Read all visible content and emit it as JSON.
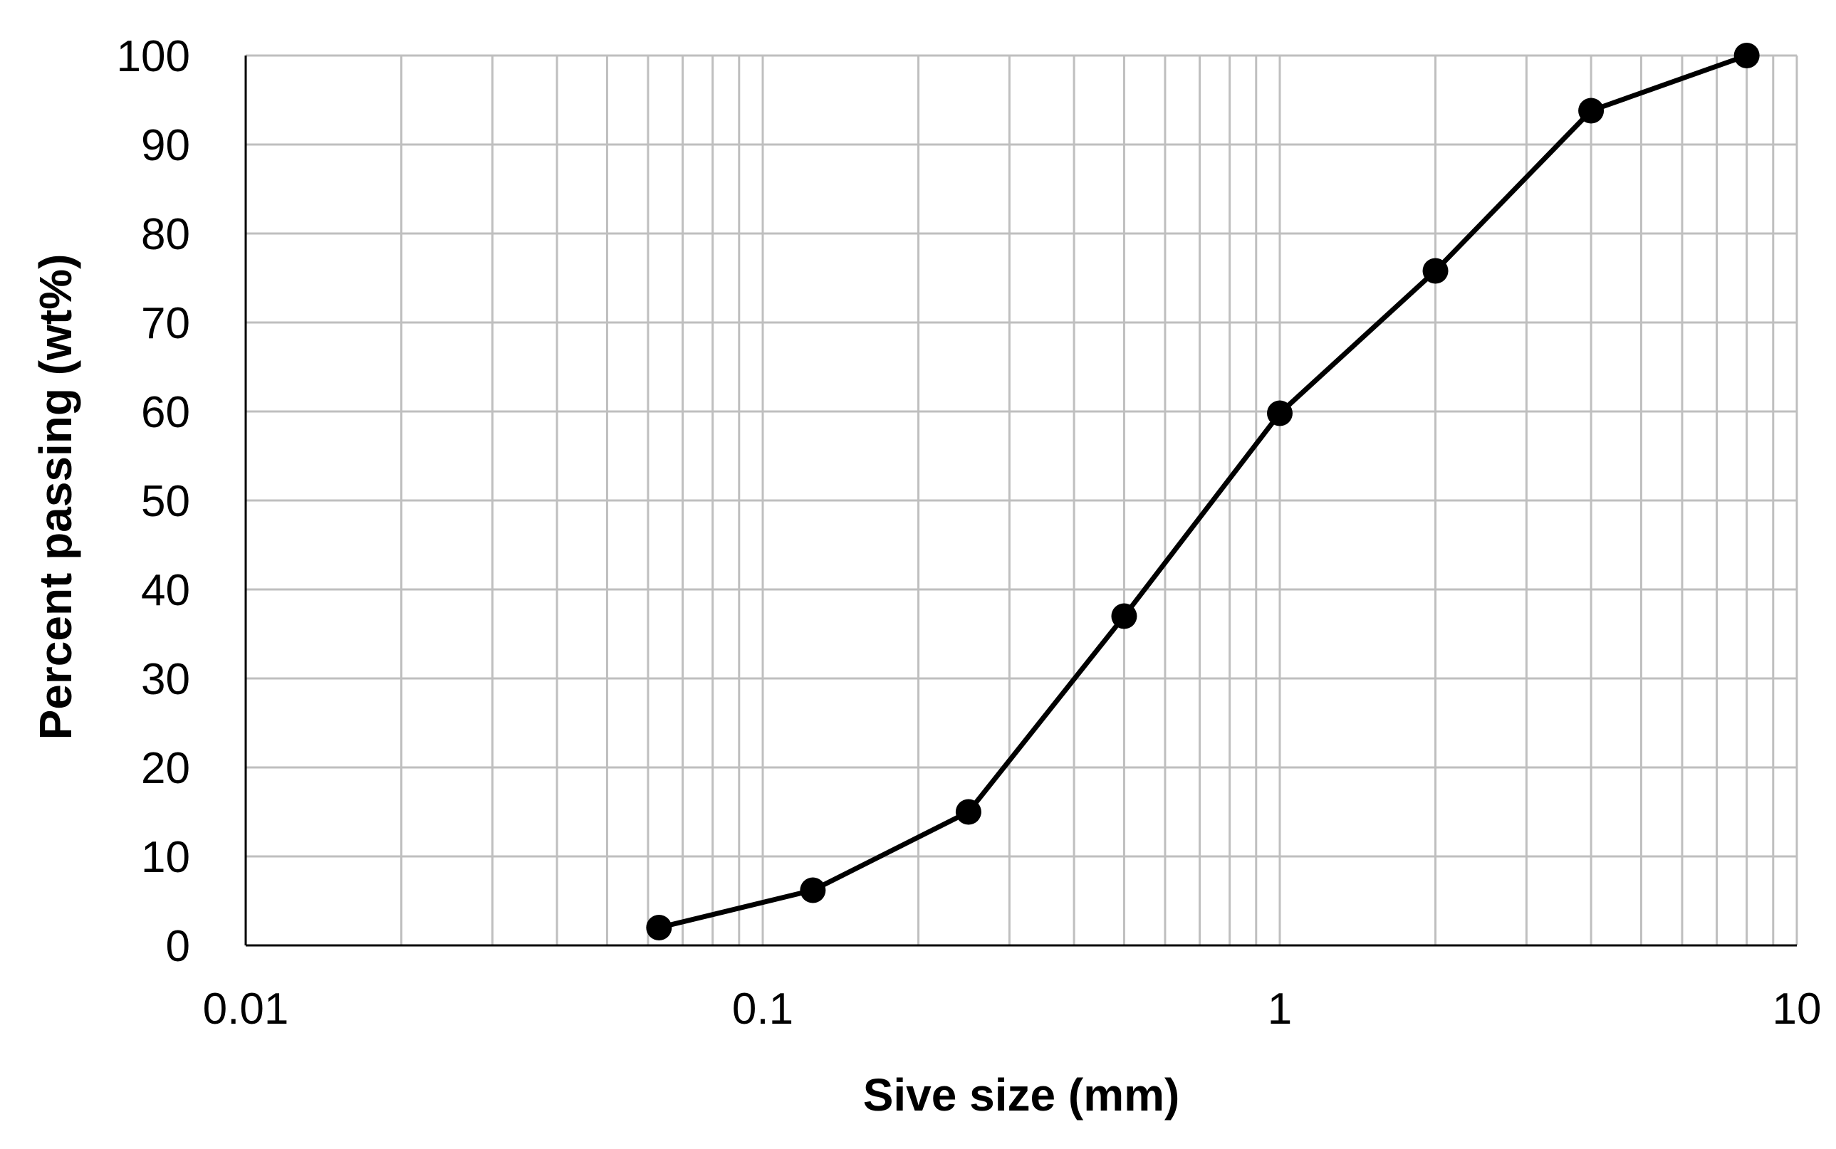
{
  "chart_data": {
    "type": "line",
    "title": "",
    "xlabel": "Sive size (mm)",
    "ylabel": "Percent passing (wt%)",
    "x_scale": "log",
    "xlim": [
      0.01,
      10
    ],
    "ylim": [
      0,
      100
    ],
    "x_tick_values": [
      0.01,
      0.1,
      1,
      10
    ],
    "x_tick_labels": [
      "0.01",
      "0.1",
      "1",
      "10"
    ],
    "y_tick_values": [
      0,
      10,
      20,
      30,
      40,
      50,
      60,
      70,
      80,
      90,
      100
    ],
    "y_tick_labels": [
      "0",
      "10",
      "20",
      "30",
      "40",
      "50",
      "60",
      "70",
      "80",
      "90",
      "100"
    ],
    "grid": true,
    "legend": "none",
    "series": [
      {
        "color": "#000000",
        "marker": "circle",
        "x": [
          0.063,
          0.125,
          0.25,
          0.5,
          1,
          2,
          4,
          8
        ],
        "y": [
          2,
          6.2,
          15,
          37,
          59.8,
          75.8,
          93.8,
          100
        ]
      }
    ]
  },
  "colors": {
    "grid": "#bfbfbf",
    "axis": "#000000",
    "series": "#000000",
    "background": "#ffffff"
  }
}
